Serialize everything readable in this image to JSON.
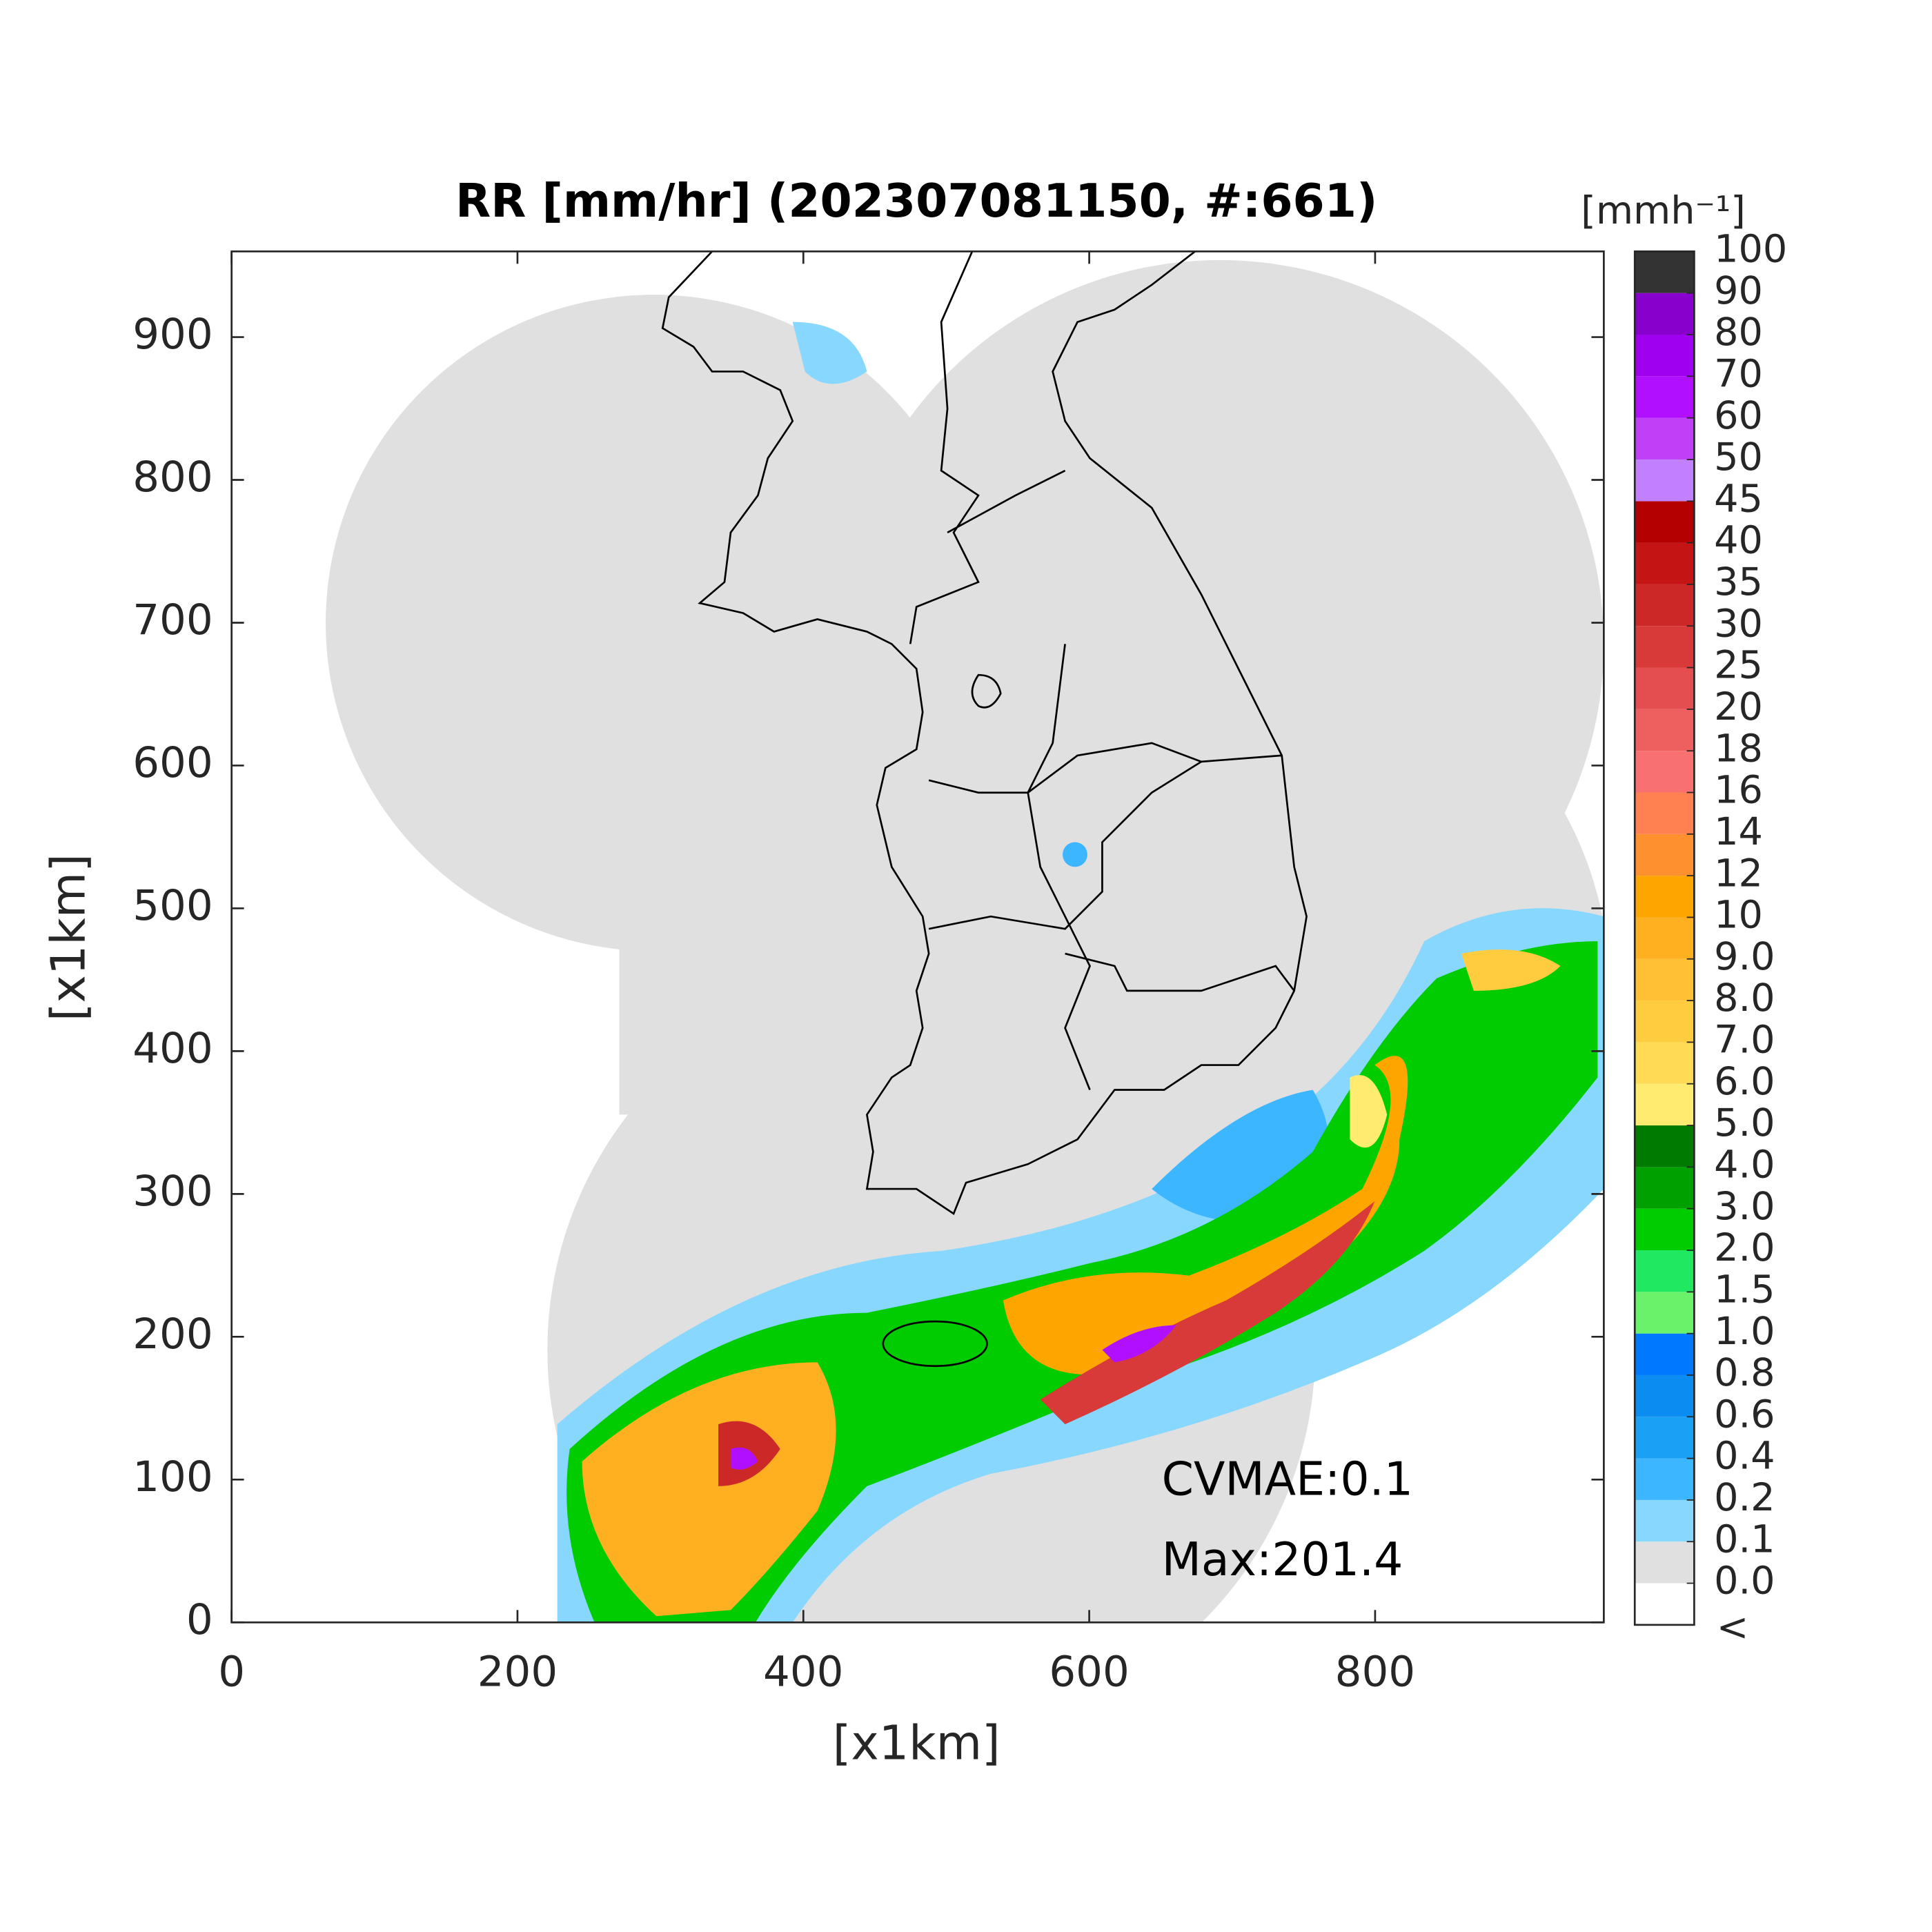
{
  "title": "RR [mm/hr] (202307081150, #:661)",
  "x_axis": {
    "label": "[x1km]",
    "lim": [
      0,
      960
    ],
    "ticks": [
      0,
      200,
      400,
      600,
      800
    ]
  },
  "y_axis": {
    "label": "[x1km]",
    "lim": [
      0,
      960
    ],
    "ticks": [
      0,
      100,
      200,
      300,
      400,
      500,
      600,
      700,
      800,
      900
    ]
  },
  "colorbar": {
    "unit": "[mmh⁻¹]",
    "under_label": "<",
    "levels": [
      {
        "value": 0,
        "label": "0.0"
      },
      0.1,
      0.2,
      0.4,
      0.6,
      0.8,
      {
        "value": 1,
        "label": "1.0"
      },
      1.5,
      {
        "value": 2,
        "label": "2.0"
      },
      {
        "value": 3,
        "label": "3.0"
      },
      {
        "value": 4,
        "label": "4.0"
      },
      {
        "value": 5,
        "label": "5.0"
      },
      {
        "value": 6,
        "label": "6.0"
      },
      {
        "value": 7,
        "label": "7.0"
      },
      {
        "value": 8,
        "label": "8.0"
      },
      {
        "value": 9,
        "label": "9.0"
      },
      10,
      12,
      14,
      16,
      18,
      20,
      25,
      30,
      35,
      40,
      45,
      50,
      60,
      70,
      80,
      90,
      100
    ],
    "colors": [
      "#ffffff",
      "#e0e0e0",
      "#87d7ff",
      "#3cb6ff",
      "#1aa0f5",
      "#0a8cf0",
      "#0078ff",
      "#6af26a",
      "#20e860",
      "#00cc00",
      "#00a000",
      "#007a00",
      "#ffeb70",
      "#ffdb55",
      "#ffcc40",
      "#ffc035",
      "#ffb020",
      "#ffa500",
      "#ff9030",
      "#ff8050",
      "#f87070",
      "#ee6060",
      "#e44e50",
      "#d83a3a",
      "#cc2828",
      "#c41414",
      "#b40000",
      "#c080ff",
      "#c040f8",
      "#b010ff",
      "#a000f0",
      "#8800cc",
      "#333333"
    ]
  },
  "annotations": [
    "CVMAE:0.1",
    "Max:201.4"
  ]
}
